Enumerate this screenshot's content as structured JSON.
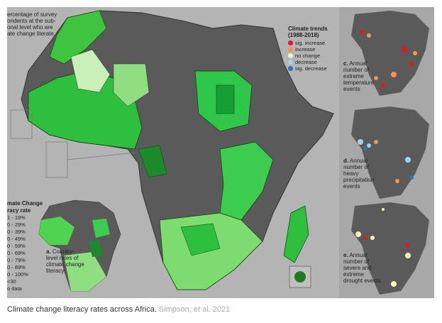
{
  "figure": {
    "intro_text": [
      "ercentage of survey",
      "ondents at the sub-",
      "onal level who are",
      "ate change literate."
    ],
    "climate_legend": {
      "title": [
        "Climate trends",
        "(1988-2018)"
      ],
      "items": [
        {
          "label": "sig. increase",
          "color": "#e8161b"
        },
        {
          "label": "increase",
          "color": "#f7944a"
        },
        {
          "label": "no change",
          "color": "#f6f4b8"
        },
        {
          "label": "decrease",
          "color": "#9dd6ec"
        },
        {
          "label": "sig. decrease",
          "color": "#1f78c1"
        }
      ]
    },
    "literacy_legend": {
      "title": [
        "mate Change",
        "racy rate"
      ],
      "items": [
        "1 - 19%",
        "0 - 29%",
        "0 - 39%",
        "0 - 49%",
        "0 - 59%",
        "0 - 69%",
        "0 - 79%",
        "0 - 89%",
        "0 - 100%",
        "<30",
        "o data"
      ]
    },
    "panel_a": {
      "letter": "a.",
      "text": [
        "Country-",
        "level rates of",
        "climate change",
        "literacy"
      ]
    },
    "panel_c": {
      "letter": "c.",
      "text": [
        "Annual",
        "number of",
        "extreme",
        "temperature",
        "events"
      ]
    },
    "panel_d": {
      "letter": "d.",
      "text": [
        "Annual",
        "number of",
        "heavy",
        "precipitation",
        "events"
      ]
    },
    "panel_e": {
      "letter": "e.",
      "text": [
        "Annual",
        "number of",
        "severe and",
        "extreme",
        "drought events"
      ]
    }
  },
  "caption": {
    "text": "Climate change literacy rates across Africa.",
    "credit": "Simpson, et al. 2021"
  }
}
